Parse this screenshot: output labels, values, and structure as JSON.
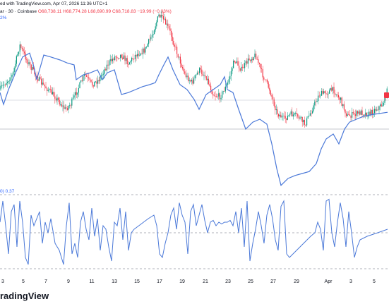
{
  "header": {
    "line1": "ed with TradingView.com, Apr 07, 2026 11:36 UTC+1",
    "symbol": "ar · 30 · Coinbase",
    "open": "O68,738.11",
    "high": "H68,774.28",
    "low": "L68,690.99",
    "close": "C68,718.83",
    "change": "−19.99 (−0.03%)",
    "compare_pct": "2%",
    "indicator_label": "0)",
    "indicator_value": "0.37",
    "brand": "radingView"
  },
  "colors": {
    "up": "#089981",
    "down": "#f23645",
    "compare_line": "#4a78d8",
    "indicator_line": "#4a78d8",
    "dashed": "#9598a1"
  },
  "chart_data": [
    {
      "type": "candlestick",
      "title": "",
      "x_ticks": [
        "3",
        "5",
        "7",
        "9",
        "11",
        "13",
        "15",
        "17",
        "19",
        "21",
        "23",
        "25",
        "27",
        "29",
        "Apr",
        "3",
        "5"
      ],
      "price_anchors": [
        [
          0,
          0.55
        ],
        [
          8,
          0.48
        ],
        [
          18,
          0.4
        ],
        [
          28,
          0.1
        ],
        [
          38,
          0.25
        ],
        [
          50,
          0.4
        ],
        [
          58,
          0.48
        ],
        [
          68,
          0.55
        ],
        [
          78,
          0.62
        ],
        [
          92,
          0.75
        ],
        [
          100,
          0.7
        ],
        [
          110,
          0.55
        ],
        [
          120,
          0.4
        ],
        [
          130,
          0.5
        ],
        [
          140,
          0.45
        ],
        [
          152,
          0.3
        ],
        [
          162,
          0.22
        ],
        [
          172,
          0.2
        ],
        [
          182,
          0.28
        ],
        [
          192,
          0.2
        ],
        [
          205,
          0.15
        ],
        [
          215,
          0.0
        ],
        [
          225,
          -0.2
        ],
        [
          232,
          -0.15
        ],
        [
          240,
          -0.05
        ],
        [
          252,
          0.2
        ],
        [
          262,
          0.4
        ],
        [
          272,
          0.48
        ],
        [
          282,
          0.35
        ],
        [
          292,
          0.42
        ],
        [
          302,
          0.6
        ],
        [
          312,
          0.62
        ],
        [
          322,
          0.5
        ],
        [
          332,
          0.25
        ],
        [
          342,
          0.35
        ],
        [
          352,
          0.25
        ],
        [
          362,
          0.2
        ],
        [
          372,
          0.4
        ],
        [
          382,
          0.55
        ],
        [
          392,
          0.78
        ],
        [
          402,
          0.85
        ],
        [
          412,
          0.8
        ],
        [
          422,
          0.82
        ],
        [
          432,
          0.9
        ],
        [
          442,
          0.75
        ],
        [
          452,
          0.6
        ],
        [
          462,
          0.58
        ],
        [
          472,
          0.55
        ],
        [
          482,
          0.65
        ],
        [
          492,
          0.82
        ],
        [
          502,
          0.8
        ],
        [
          512,
          0.78
        ],
        [
          522,
          0.8
        ],
        [
          532,
          0.75
        ],
        [
          542,
          0.7
        ],
        [
          549,
          0.55
        ]
      ]
    },
    {
      "type": "line",
      "name": "",
      "points": [
        [
          0,
          0.58
        ],
        [
          5,
          0.7
        ],
        [
          12,
          0.55
        ],
        [
          22,
          0.38
        ],
        [
          32,
          0.22
        ],
        [
          42,
          0.18
        ],
        [
          48,
          0.32
        ],
        [
          52,
          0.45
        ],
        [
          62,
          0.2
        ],
        [
          72,
          0.22
        ],
        [
          85,
          0.25
        ],
        [
          95,
          0.28
        ],
        [
          105,
          0.3
        ],
        [
          108,
          0.45
        ],
        [
          118,
          0.4
        ],
        [
          128,
          0.38
        ],
        [
          138,
          0.35
        ],
        [
          145,
          0.45
        ],
        [
          152,
          0.38
        ],
        [
          162,
          0.35
        ],
        [
          172,
          0.6
        ],
        [
          182,
          0.58
        ],
        [
          192,
          0.55
        ],
        [
          202,
          0.52
        ],
        [
          212,
          0.5
        ],
        [
          220,
          0.48
        ],
        [
          225,
          0.4
        ],
        [
          232,
          0.3
        ],
        [
          238,
          0.22
        ],
        [
          245,
          0.35
        ],
        [
          255,
          0.5
        ],
        [
          265,
          0.55
        ],
        [
          275,
          0.65
        ],
        [
          282,
          0.75
        ],
        [
          292,
          0.6
        ],
        [
          302,
          0.55
        ],
        [
          312,
          0.5
        ],
        [
          318,
          0.42
        ],
        [
          322,
          0.55
        ],
        [
          330,
          0.58
        ],
        [
          338,
          0.75
        ],
        [
          348,
          0.95
        ],
        [
          358,
          0.88
        ],
        [
          368,
          0.85
        ],
        [
          378,
          0.9
        ],
        [
          385,
          1.1
        ],
        [
          392,
          1.35
        ],
        [
          398,
          1.52
        ],
        [
          408,
          1.45
        ],
        [
          418,
          1.42
        ],
        [
          428,
          1.4
        ],
        [
          438,
          1.38
        ],
        [
          448,
          1.3
        ],
        [
          455,
          1.15
        ],
        [
          462,
          1.05
        ],
        [
          472,
          1.0
        ],
        [
          480,
          1.1
        ],
        [
          488,
          0.95
        ],
        [
          495,
          0.88
        ],
        [
          505,
          0.85
        ],
        [
          515,
          0.82
        ],
        [
          530,
          0.8
        ],
        [
          549,
          0.78
        ]
      ]
    },
    {
      "type": "line",
      "name": "",
      "points": [
        [
          0,
          0.3
        ],
        [
          4,
          0.9
        ],
        [
          8,
          0.2
        ],
        [
          12,
          -0.6
        ],
        [
          16,
          0.6
        ],
        [
          20,
          0.8
        ],
        [
          24,
          -0.4
        ],
        [
          28,
          0.9
        ],
        [
          32,
          0.3
        ],
        [
          36,
          -0.7
        ],
        [
          40,
          -0.9
        ],
        [
          44,
          0.5
        ],
        [
          48,
          0.2
        ],
        [
          52,
          0.4
        ],
        [
          56,
          0.6
        ],
        [
          60,
          -0.3
        ],
        [
          64,
          0.3
        ],
        [
          68,
          0.0
        ],
        [
          72,
          0.4
        ],
        [
          78,
          -0.3
        ],
        [
          84,
          -0.5
        ],
        [
          90,
          -0.9
        ],
        [
          94,
          0.2
        ],
        [
          98,
          0.85
        ],
        [
          102,
          -0.6
        ],
        [
          106,
          -0.3
        ],
        [
          110,
          -0.7
        ],
        [
          114,
          0.3
        ],
        [
          118,
          0.6
        ],
        [
          122,
          0.1
        ],
        [
          126,
          -0.2
        ],
        [
          130,
          0.7
        ],
        [
          134,
          -0.1
        ],
        [
          138,
          0.4
        ],
        [
          142,
          -0.5
        ],
        [
          146,
          0.2
        ],
        [
          150,
          0.1
        ],
        [
          154,
          -0.4
        ],
        [
          158,
          -0.8
        ],
        [
          162,
          0.3
        ],
        [
          166,
          0.2
        ],
        [
          170,
          0.7
        ],
        [
          174,
          -0.2
        ],
        [
          178,
          0.6
        ],
        [
          182,
          -0.5
        ],
        [
          186,
          0.0
        ],
        [
          190,
          0.1
        ],
        [
          200,
          0.25
        ],
        [
          210,
          0.4
        ],
        [
          218,
          0.5
        ],
        [
          222,
          0.2
        ],
        [
          226,
          -0.6
        ],
        [
          230,
          -0.7
        ],
        [
          234,
          -0.3
        ],
        [
          238,
          0.0
        ],
        [
          242,
          0.5
        ],
        [
          246,
          0.7
        ],
        [
          250,
          0.1
        ],
        [
          254,
          0.85
        ],
        [
          258,
          0.5
        ],
        [
          262,
          0.3
        ],
        [
          266,
          -0.6
        ],
        [
          270,
          0.6
        ],
        [
          274,
          0.8
        ],
        [
          278,
          0.2
        ],
        [
          282,
          0.5
        ],
        [
          286,
          0.8
        ],
        [
          290,
          0.35
        ],
        [
          294,
          0.0
        ],
        [
          298,
          0.3
        ],
        [
          302,
          0.35
        ],
        [
          306,
          0.2
        ],
        [
          310,
          0.3
        ],
        [
          314,
          0.25
        ],
        [
          318,
          0.3
        ],
        [
          322,
          0.3
        ],
        [
          326,
          0.35
        ],
        [
          330,
          0.2
        ],
        [
          334,
          0.6
        ],
        [
          338,
          0.0
        ],
        [
          342,
          0.7
        ],
        [
          346,
          -0.4
        ],
        [
          350,
          0.9
        ],
        [
          354,
          -0.8
        ],
        [
          358,
          -0.3
        ],
        [
          362,
          0.1
        ],
        [
          366,
          0.6
        ],
        [
          370,
          0.2
        ],
        [
          374,
          -0.3
        ],
        [
          378,
          0.5
        ],
        [
          382,
          0.8
        ],
        [
          386,
          0.4
        ],
        [
          390,
          -0.2
        ],
        [
          394,
          -0.5
        ],
        [
          398,
          0.75
        ],
        [
          402,
          0.9
        ],
        [
          406,
          -0.6
        ],
        [
          410,
          -0.7
        ],
        [
          420,
          -0.5
        ],
        [
          430,
          -0.3
        ],
        [
          440,
          -0.1
        ],
        [
          446,
          0.0
        ],
        [
          450,
          0.3
        ],
        [
          454,
          0.1
        ],
        [
          458,
          -0.5
        ],
        [
          462,
          0.9
        ],
        [
          466,
          0.95
        ],
        [
          470,
          0.0
        ],
        [
          474,
          -0.4
        ],
        [
          478,
          0.3
        ],
        [
          482,
          0.85
        ],
        [
          486,
          0.4
        ],
        [
          490,
          -0.4
        ],
        [
          494,
          0.6
        ],
        [
          498,
          0.0
        ],
        [
          502,
          -0.7
        ],
        [
          506,
          -0.4
        ],
        [
          510,
          -0.2
        ],
        [
          520,
          -0.1
        ],
        [
          535,
          0.0
        ],
        [
          549,
          0.1
        ]
      ]
    }
  ]
}
